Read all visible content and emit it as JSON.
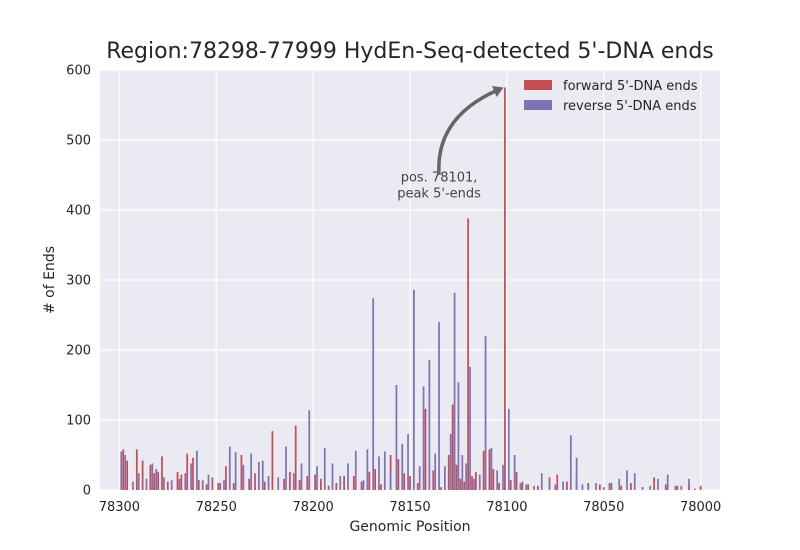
{
  "chart_data": {
    "type": "bar",
    "title": "Region:78298-77999 HydEn-Seq-detected 5'-DNA ends",
    "xlabel": "Genomic Position",
    "ylabel": "# of Ends",
    "xlim": [
      78310,
      77990
    ],
    "ylim": [
      0,
      600
    ],
    "x_ticks": [
      78300,
      78250,
      78200,
      78150,
      78100,
      78050,
      78000
    ],
    "y_ticks": [
      0,
      100,
      200,
      300,
      400,
      500,
      600
    ],
    "grid": true,
    "legend_position": "top-right",
    "series": [
      {
        "name": "forward 5'-DNA ends",
        "color": "#c44e52",
        "x": [
          78298,
          78296,
          78291,
          78288,
          78284,
          78282,
          78280,
          78278,
          78275,
          78270,
          78268,
          78265,
          78262,
          78259,
          78255,
          78252,
          78248,
          78245,
          78241,
          78237,
          78233,
          78230,
          78225,
          78221,
          78215,
          78212,
          78209,
          78207,
          78203,
          78199,
          78196,
          78192,
          78188,
          78184,
          78179,
          78175,
          78171,
          78168,
          78165,
          78160,
          78156,
          78153,
          78150,
          78146,
          78142,
          78138,
          78134,
          78130,
          78128,
          78126,
          78124,
          78122,
          78120,
          78118,
          78116,
          78112,
          78109,
          78107,
          78104,
          78101,
          78098,
          78095,
          78092,
          78089,
          78084,
          78078,
          78074,
          78069,
          78064,
          78058,
          78052,
          78047,
          78041,
          78036,
          78030,
          78024,
          78018,
          78012,
          78006,
          78000
        ],
        "values": [
          58,
          42,
          58,
          42,
          36,
          24,
          26,
          48,
          12,
          26,
          22,
          52,
          46,
          14,
          8,
          18,
          10,
          34,
          10,
          50,
          16,
          24,
          12,
          84,
          16,
          26,
          92,
          14,
          20,
          22,
          16,
          6,
          10,
          20,
          20,
          12,
          26,
          30,
          8,
          50,
          44,
          24,
          20,
          10,
          116,
          28,
          4,
          50,
          122,
          36,
          16,
          12,
          388,
          20,
          26,
          56,
          58,
          30,
          10,
          575,
          14,
          26,
          12,
          8,
          6,
          18,
          22,
          12,
          18,
          10,
          8,
          10,
          6,
          10,
          4,
          18,
          8,
          6,
          8,
          6
        ]
      },
      {
        "name": "reverse 5'-DNA ends",
        "color": "#8172b2",
        "x": [
          78299,
          78297,
          78293,
          78290,
          78286,
          78283,
          78281,
          78277,
          78273,
          78269,
          78266,
          78263,
          78260,
          78257,
          78254,
          78249,
          78246,
          78243,
          78240,
          78236,
          78232,
          78228,
          78226,
          78223,
          78218,
          78214,
          78210,
          78206,
          78202,
          78198,
          78194,
          78190,
          78186,
          78182,
          78178,
          78174,
          78172,
          78169,
          78166,
          78163,
          78160,
          78157,
          78154,
          78151,
          78148,
          78145,
          78143,
          78140,
          78137,
          78135,
          78132,
          78129,
          78127,
          78125,
          78123,
          78121,
          78119,
          78117,
          78114,
          78111,
          78108,
          78105,
          78102,
          78099,
          78096,
          78093,
          78090,
          78086,
          78082,
          78078,
          78075,
          78071,
          78067,
          78064,
          78061,
          78058,
          78054,
          78050,
          78046,
          78042,
          78038,
          78034,
          78030,
          78026,
          78022,
          78017,
          78013,
          78010,
          78006,
          78003
        ],
        "values": [
          55,
          50,
          12,
          24,
          16,
          38,
          30,
          18,
          14,
          16,
          24,
          38,
          56,
          14,
          22,
          10,
          14,
          62,
          54,
          36,
          52,
          40,
          42,
          20,
          18,
          62,
          24,
          38,
          114,
          34,
          60,
          38,
          20,
          38,
          56,
          14,
          58,
          274,
          48,
          55,
          26,
          150,
          66,
          80,
          286,
          34,
          148,
          186,
          52,
          240,
          34,
          80,
          282,
          154,
          50,
          38,
          176,
          16,
          22,
          220,
          60,
          28,
          36,
          116,
          50,
          10,
          8,
          6,
          24,
          12,
          8,
          12,
          78,
          46,
          8,
          6,
          10,
          4,
          10,
          16,
          28,
          24,
          4,
          6,
          16,
          22,
          6,
          6,
          16,
          2
        ]
      }
    ],
    "annotation": {
      "lines": [
        "pos. 78101,",
        "peak 5'-ends"
      ],
      "text_at": [
        78135,
        415
      ],
      "arrow_from": [
        78135,
        450
      ],
      "arrow_to": [
        78101,
        575
      ]
    }
  }
}
